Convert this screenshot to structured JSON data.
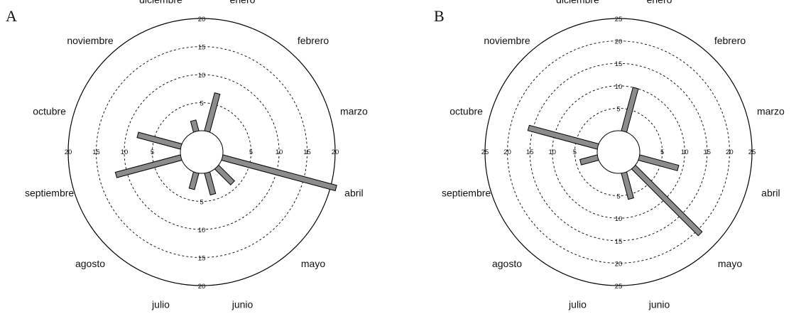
{
  "chart_data": [
    {
      "type": "bar",
      "panel": "A",
      "categories": [
        "enero",
        "febrero",
        "marzo",
        "abril",
        "mayo",
        "junio",
        "julio",
        "agosto",
        "septiembre",
        "octubre",
        "noviembre",
        "diciembre"
      ],
      "values": [
        7,
        0,
        0,
        21,
        4,
        4,
        3,
        0,
        12,
        8,
        0,
        2
      ],
      "rings": [
        5,
        10,
        15,
        20
      ],
      "ylim": [
        0,
        20
      ]
    },
    {
      "type": "bar",
      "panel": "B",
      "categories": [
        "enero",
        "febrero",
        "marzo",
        "abril",
        "mayo",
        "junio",
        "julio",
        "agosto",
        "septiembre",
        "octubre",
        "noviembre",
        "diciembre"
      ],
      "values": [
        10,
        0,
        0,
        9,
        21,
        6,
        0,
        0,
        4,
        16,
        0,
        0
      ],
      "rings": [
        5,
        10,
        15,
        20,
        25
      ],
      "ylim": [
        0,
        25
      ]
    }
  ]
}
